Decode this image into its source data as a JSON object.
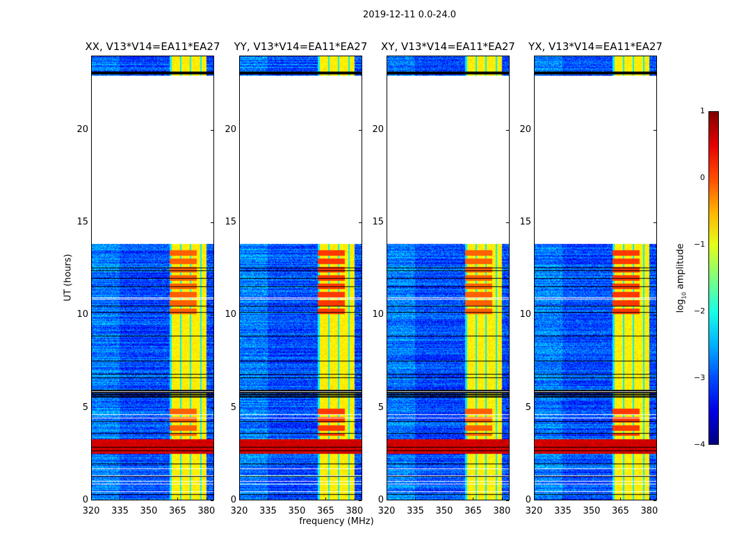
{
  "figure": {
    "suptitle": "2019-12-11 0.0-24.0",
    "xlabel": "frequency (MHz)",
    "ylabel": "UT (hours)"
  },
  "colorbar": {
    "label": "log10 amplitude",
    "label_main": "log",
    "label_sub": "10",
    "label_rest": " amplitude",
    "ticks": [
      "1",
      "0",
      "−1",
      "−2",
      "−3",
      "−4"
    ],
    "range": [
      -4,
      1
    ],
    "colormap": "jet"
  },
  "chart_data": {
    "type": "heatmap",
    "panels": [
      {
        "title": "XX, V13*V14=EA11*EA27",
        "pol": "XX"
      },
      {
        "title": "YY, V13*V14=EA11*EA27",
        "pol": "YY"
      },
      {
        "title": "XY, V13*V14=EA11*EA27",
        "pol": "XY"
      },
      {
        "title": "YX, V13*V14=EA11*EA27",
        "pol": "YX"
      }
    ],
    "xlim": [
      320,
      384
    ],
    "ylim": [
      0,
      24
    ],
    "xticks": [
      "320",
      "335",
      "350",
      "365",
      "380"
    ],
    "xtick_values": [
      320,
      335,
      350,
      365,
      380
    ],
    "yticks": [
      "0",
      "5",
      "10",
      "15",
      "20"
    ],
    "ytick_values": [
      0,
      5,
      10,
      15,
      20
    ],
    "value_range": [
      -4,
      1
    ],
    "background_level": -3,
    "rfi_band_mhz": [
      361,
      380
    ],
    "rfi_level": -0.8,
    "strong_event_ut": [
      2.5,
      3.3
    ],
    "strong_event_level": 0.6,
    "no_data_ut": [
      13.85,
      22.9
    ],
    "flagged_ut": [
      23.0,
      23.15
    ]
  }
}
